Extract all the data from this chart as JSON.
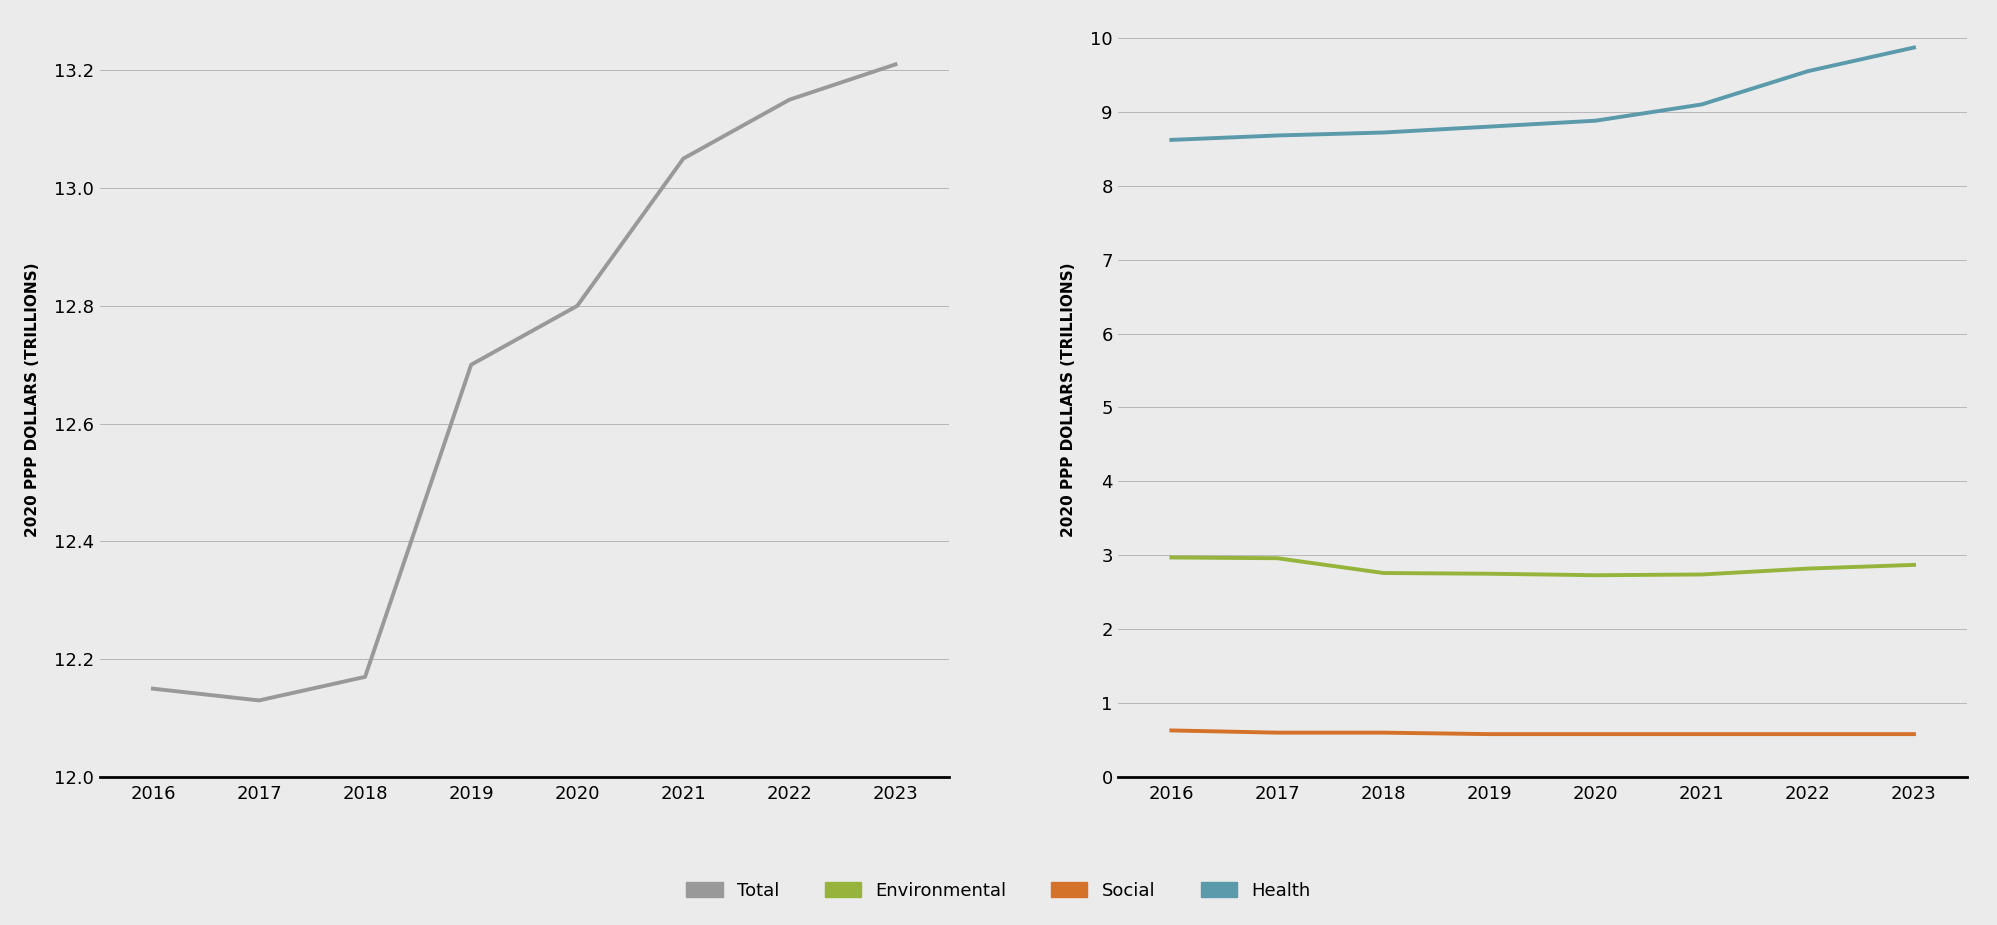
{
  "years": [
    2016,
    2017,
    2018,
    2019,
    2020,
    2021,
    2022,
    2023
  ],
  "total": [
    12.15,
    12.13,
    12.17,
    12.7,
    12.8,
    13.05,
    13.15,
    13.21
  ],
  "environmental": [
    2.97,
    2.96,
    2.76,
    2.75,
    2.73,
    2.74,
    2.82,
    2.87
  ],
  "social": [
    0.63,
    0.6,
    0.6,
    0.58,
    0.58,
    0.58,
    0.58,
    0.58
  ],
  "health": [
    8.62,
    8.68,
    8.72,
    8.8,
    8.88,
    9.1,
    9.55,
    9.87
  ],
  "left_ylim": [
    12.0,
    13.28
  ],
  "left_yticks": [
    12.0,
    12.2,
    12.4,
    12.6,
    12.8,
    13.0,
    13.2
  ],
  "right_ylim": [
    0,
    10.2
  ],
  "right_yticks": [
    0,
    1,
    2,
    3,
    4,
    5,
    6,
    7,
    8,
    9,
    10
  ],
  "xlim": [
    2015.5,
    2023.5
  ],
  "xticks": [
    2016,
    2017,
    2018,
    2019,
    2020,
    2021,
    2022,
    2023
  ],
  "ylabel": "2020 PPP DOLLARS (TRILLIONS)",
  "bg_color": "#ebebeb",
  "total_color": "#999999",
  "env_color": "#96b43c",
  "social_color": "#d4722a",
  "health_color": "#5a9aab",
  "legend_items": [
    "Total",
    "Environmental",
    "Social",
    "Health"
  ],
  "line_width": 2.8,
  "grid_color": "#aaaaaa",
  "tick_fontsize": 13,
  "ylabel_fontsize": 11
}
